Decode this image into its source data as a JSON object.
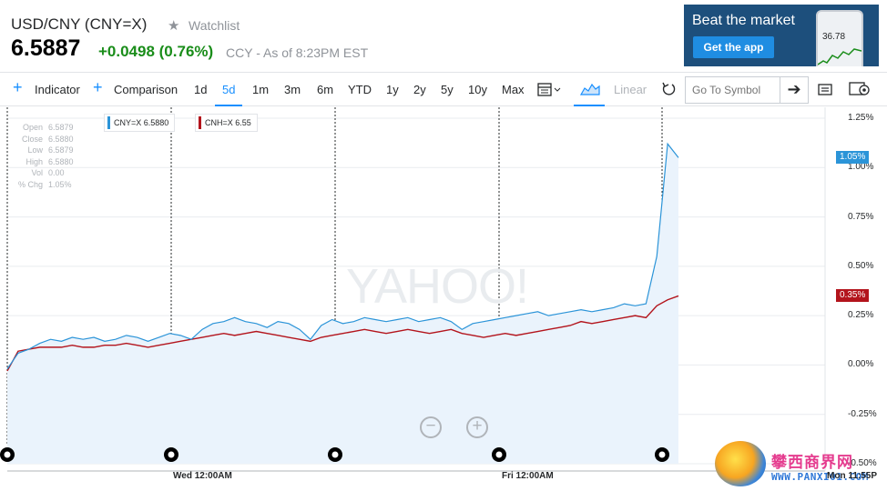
{
  "header": {
    "title": "USD/CNY (CNY=X)",
    "watchlist_label": "Watchlist",
    "price": "6.5887",
    "change": "+0.0498 (0.76%)",
    "as_of": "CCY - As of 8:23PM EST"
  },
  "ad": {
    "headline": "Beat the market",
    "button": "Get the app",
    "phone_value": "36.78"
  },
  "toolbar": {
    "indicator": "Indicator",
    "comparison": "Comparison",
    "ranges": [
      "1d",
      "5d",
      "1m",
      "3m",
      "6m",
      "YTD",
      "1y",
      "2y",
      "5y",
      "10y",
      "Max"
    ],
    "active_range": "5d",
    "scale": "Linear",
    "symbol_placeholder": "Go To Symbol"
  },
  "info_panel": [
    {
      "label": "Open",
      "value": "6.5879"
    },
    {
      "label": "Close",
      "value": "6.5880"
    },
    {
      "label": "Low",
      "value": "6.5879"
    },
    {
      "label": "High",
      "value": "6.5880"
    },
    {
      "label": "Vol",
      "value": "0.00"
    },
    {
      "label": "% Chg",
      "value": "1.05%"
    }
  ],
  "legend": {
    "cny": "CNY=X 6.5880",
    "cnh": "CNH=X 6.55"
  },
  "watermark": "YAHOO!",
  "footer_watermark": {
    "title": "攀西商界网",
    "url": "WWW.PANXI01.COM",
    "logo_text": "PANXI"
  },
  "colors": {
    "accent": "#188fff",
    "positive": "#1a8d1a",
    "cny_series": "#2b94d8",
    "cnh_series": "#b3141c"
  },
  "chart_data": {
    "type": "line",
    "x_ticks": [
      "Wed 12:00AM",
      "Fri 12:00AM",
      "Mon 11:55P"
    ],
    "y_ticks": [
      "1.25%",
      "1.00%",
      "0.75%",
      "0.50%",
      "0.25%",
      "0.00%",
      "-0.25%",
      "-0.50%"
    ],
    "ylim": [
      -0.5,
      1.25
    ],
    "grid": true,
    "legend_position": "top-left",
    "last_values": {
      "CNY=X": "1.05%",
      "CNH=X": "0.35%"
    },
    "series": [
      {
        "name": "CNY=X 6.5880",
        "values": [
          -0.02,
          0.06,
          0.08,
          0.11,
          0.13,
          0.12,
          0.14,
          0.13,
          0.14,
          0.12,
          0.13,
          0.15,
          0.14,
          0.12,
          0.14,
          0.16,
          0.15,
          0.13,
          0.18,
          0.21,
          0.22,
          0.24,
          0.22,
          0.21,
          0.19,
          0.22,
          0.21,
          0.18,
          0.13,
          0.2,
          0.23,
          0.21,
          0.22,
          0.24,
          0.23,
          0.22,
          0.23,
          0.24,
          0.22,
          0.23,
          0.24,
          0.22,
          0.18,
          0.21,
          0.22,
          0.23,
          0.24,
          0.25,
          0.26,
          0.27,
          0.25,
          0.26,
          0.27,
          0.28,
          0.27,
          0.28,
          0.29,
          0.31,
          0.3,
          0.31,
          0.55,
          1.12,
          1.05
        ]
      },
      {
        "name": "CNH=X 6.55",
        "values": [
          -0.03,
          0.07,
          0.08,
          0.09,
          0.09,
          0.09,
          0.1,
          0.09,
          0.09,
          0.1,
          0.1,
          0.11,
          0.1,
          0.09,
          0.1,
          0.11,
          0.12,
          0.13,
          0.14,
          0.15,
          0.16,
          0.15,
          0.16,
          0.17,
          0.16,
          0.15,
          0.14,
          0.13,
          0.12,
          0.14,
          0.15,
          0.16,
          0.17,
          0.18,
          0.17,
          0.16,
          0.17,
          0.18,
          0.17,
          0.16,
          0.17,
          0.18,
          0.16,
          0.15,
          0.14,
          0.15,
          0.16,
          0.15,
          0.16,
          0.17,
          0.18,
          0.19,
          0.2,
          0.22,
          0.21,
          0.22,
          0.23,
          0.24,
          0.25,
          0.24,
          0.3,
          0.33,
          0.35
        ]
      }
    ]
  }
}
